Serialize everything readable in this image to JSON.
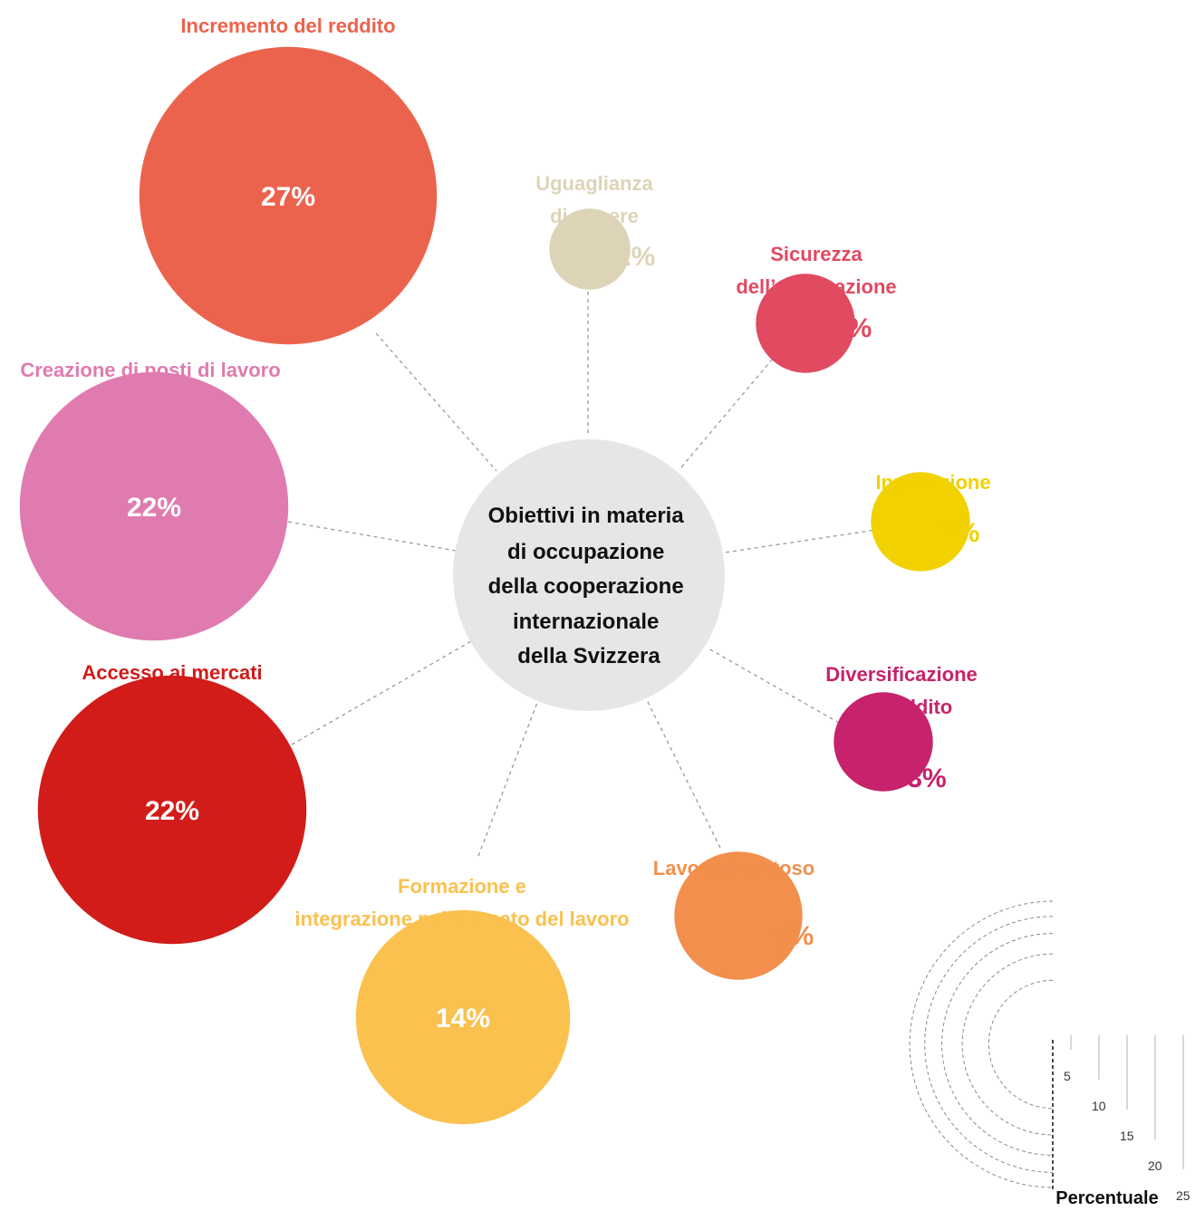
{
  "chart_data": {
    "type": "bubble",
    "center_title": [
      "Obiettivi in materia",
      "di occupazione",
      "della cooperazione",
      "internazionale",
      "della Svizzera"
    ],
    "items": [
      {
        "id": "incremento",
        "label": [
          "Incremento del reddito"
        ],
        "value": 27,
        "display": "27%",
        "color": "#ec634d"
      },
      {
        "id": "creazione",
        "label": [
          "Creazione di posti di lavoro"
        ],
        "value": 22,
        "display": "22%",
        "color": "#e07bb0"
      },
      {
        "id": "accesso",
        "label": [
          "Accesso ai mercati"
        ],
        "value": 22,
        "display": "22%",
        "color": "#d11c19"
      },
      {
        "id": "formazione",
        "label": [
          "Formazione e",
          "integrazione nel mercato del lavoro"
        ],
        "value": 14,
        "display": "14%",
        "color": "#fac14f"
      },
      {
        "id": "lavoro",
        "label": [
          "Lavoro dignitoso"
        ],
        "value": 5,
        "display": "5%",
        "color": "#f28f4d"
      },
      {
        "id": "diversificazione",
        "label": [
          "Diversificazione",
          "del reddito"
        ],
        "value": 3,
        "display": "3%",
        "color": "#c6236c"
      },
      {
        "id": "innovazione",
        "label": [
          "Innovazione"
        ],
        "value": 3,
        "display": "3%",
        "color": "#f1d100"
      },
      {
        "id": "sicurezza",
        "label": [
          "Sicurezza",
          "dell’occupazione"
        ],
        "value": 3,
        "display": "3%",
        "color": "#e14a61"
      },
      {
        "id": "uguaglianza",
        "label": [
          "Uguaglianza",
          "di genere"
        ],
        "value": 2,
        "display": "2%",
        "color": "#ddd4b8"
      }
    ],
    "legend": {
      "title": "Percentuale",
      "ticks": [
        5,
        10,
        15,
        20,
        25
      ]
    }
  },
  "colors": {
    "center_fill": "#e6e6e6",
    "connector": "#9a9a9a"
  }
}
